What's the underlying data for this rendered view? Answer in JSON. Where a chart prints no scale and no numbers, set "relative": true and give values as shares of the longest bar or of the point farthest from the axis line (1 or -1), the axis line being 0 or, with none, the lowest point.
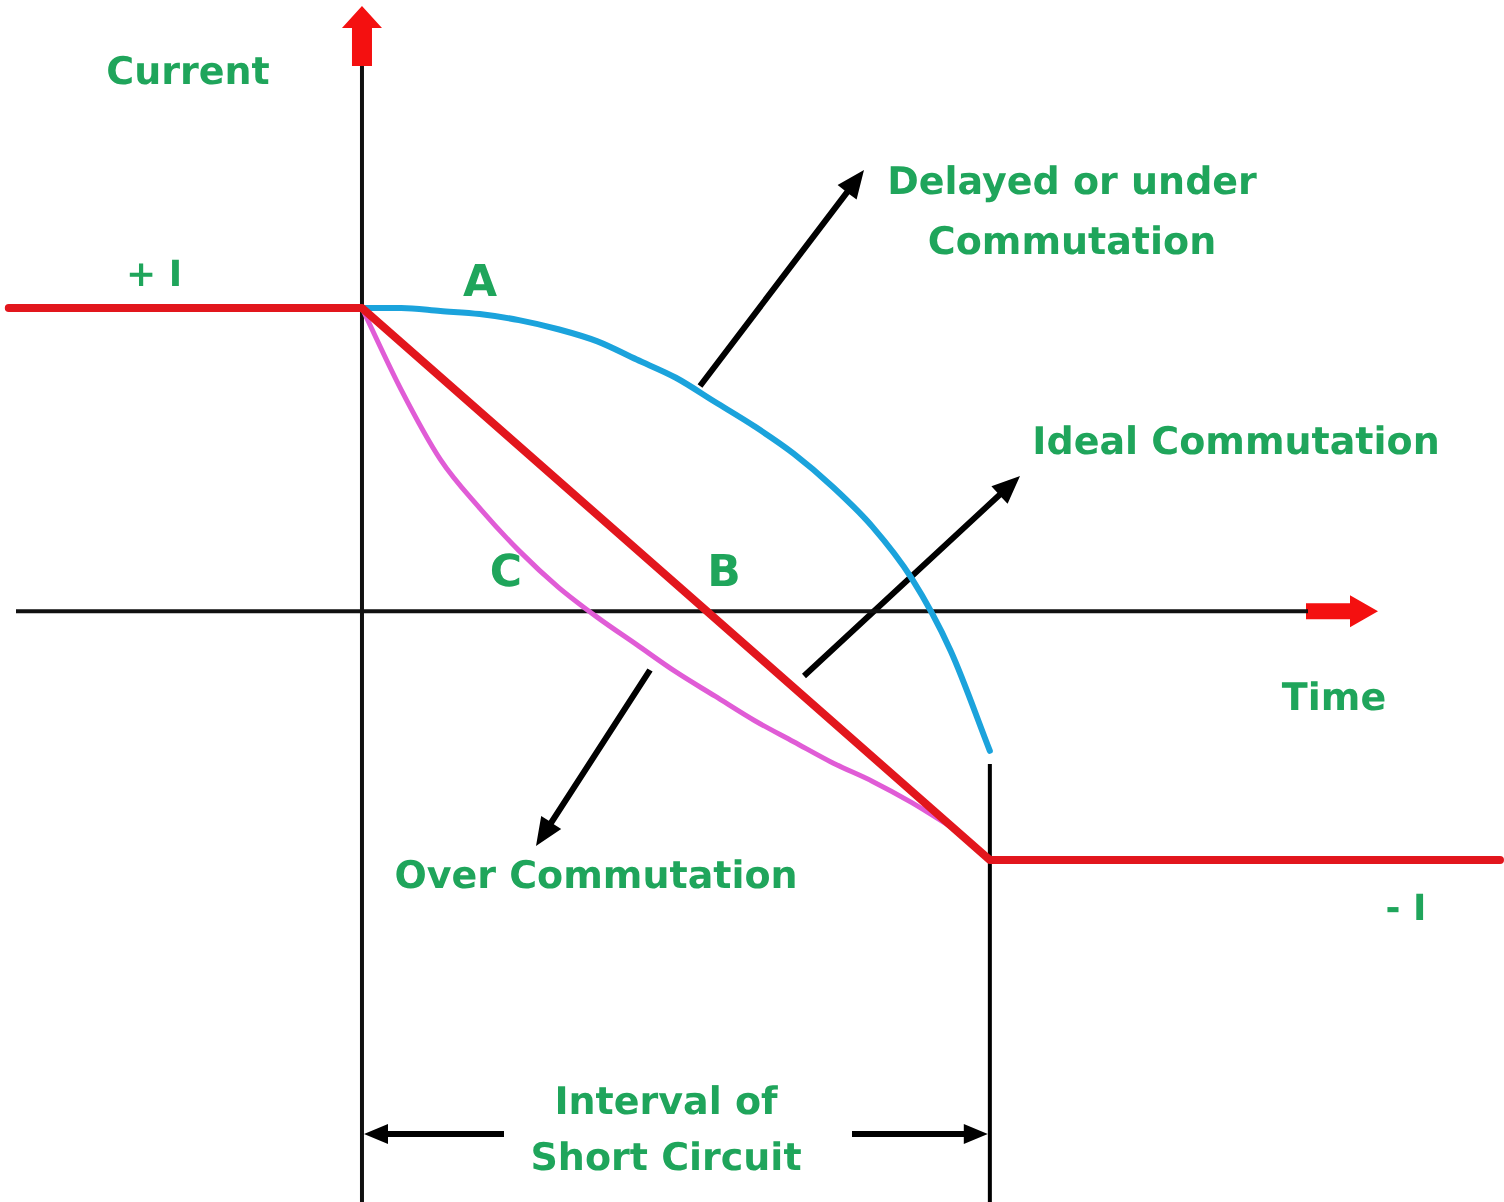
{
  "chart_data": {
    "type": "line",
    "relative": true,
    "xlabel": "Time",
    "legend": false,
    "marker": "none",
    "categories": [
      null,
      null,
      null,
      null,
      null,
      null,
      null,
      null,
      null,
      null,
      null,
      null,
      null,
      null,
      null,
      null,
      null,
      null,
      null,
      null,
      null,
      null,
      null,
      null,
      null,
      null,
      null,
      null,
      null,
      null,
      null,
      null,
      null,
      null,
      null,
      null,
      null,
      null,
      null
    ],
    "series": [
      {
        "color": "#e2161d",
        "values": [
          1,
          null,
          null,
          null,
          null,
          null,
          null,
          null,
          null,
          1,
          null,
          null,
          null,
          null,
          null,
          null,
          null,
          null,
          null,
          null,
          null,
          null,
          null,
          null,
          null,
          -0.82,
          null,
          null,
          null,
          null,
          null,
          null,
          null,
          null,
          null,
          null,
          null,
          null,
          -0.82
        ]
      },
      {
        "color": "#1ba3dc",
        "values": [
          null,
          null,
          null,
          null,
          null,
          null,
          null,
          null,
          null,
          1,
          1,
          0.99,
          0.98,
          0.96,
          0.93,
          0.89,
          0.83,
          0.77,
          0.69,
          0.61,
          0.52,
          0.41,
          0.28,
          0.11,
          -0.13,
          -0.46,
          null,
          null,
          null,
          null,
          null,
          null,
          null,
          null,
          null,
          null,
          null,
          null,
          null
        ]
      },
      {
        "color": "#e05cd6",
        "values": [
          null,
          null,
          null,
          null,
          null,
          null,
          null,
          null,
          null,
          1,
          0.73,
          0.5,
          0.34,
          0.2,
          0.08,
          -0.02,
          -0.11,
          -0.2,
          -0.28,
          -0.36,
          -0.43,
          -0.5,
          -0.56,
          -0.63,
          -0.71,
          null,
          null,
          null,
          null,
          null,
          null,
          null,
          null,
          null,
          null,
          null,
          null,
          null,
          null
        ]
      }
    ],
    "annotations": [
      "Current",
      {
        "text": "+ I",
        "y": 1
      },
      "A",
      "Delayed or under Commutation",
      "Ideal Commutation",
      "C",
      "B",
      "Over Commutation",
      {
        "text": "- I",
        "y": -0.82
      },
      "Interval of Short Circuit"
    ]
  }
}
